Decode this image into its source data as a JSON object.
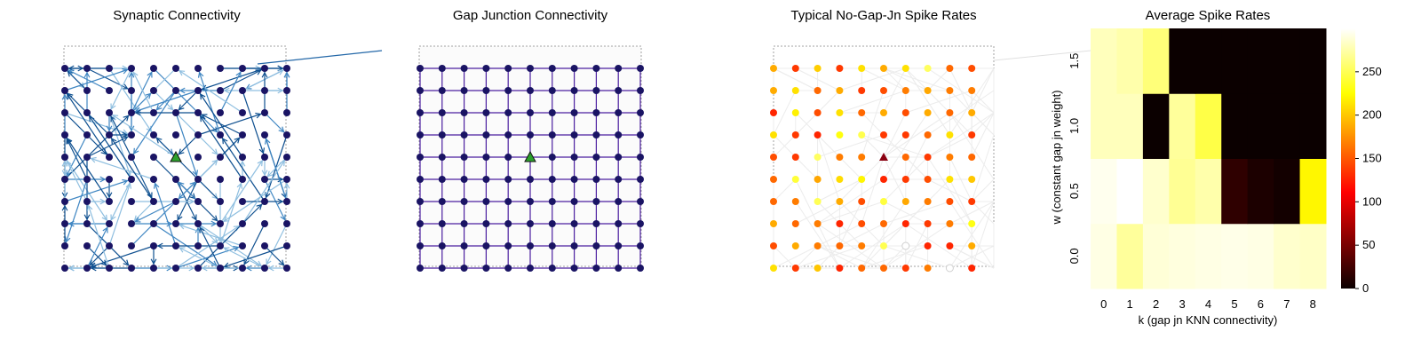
{
  "panels": {
    "synaptic": {
      "title": "Synaptic Connectivity"
    },
    "gap": {
      "title": "Gap Junction Connectivity"
    },
    "rates": {
      "title": "Typical No-Gap-Jn Spike Rates"
    }
  },
  "grid": {
    "n": 11
  },
  "colors": {
    "node": "#1a1464",
    "marker": "#2ca02c",
    "gap_edge": "#4b1fa0",
    "syn_light": "#8fbfe0",
    "syn_mid": "#3f86c2",
    "syn_dark": "#0e4f8f",
    "panel_bg": "#fbfbfb",
    "border": "#a0a0a0"
  },
  "chart_data": {
    "type": "heatmap",
    "title": "Average Spike Rates",
    "xlabel": "k (gap jn KNN connectivity)",
    "ylabel": "w (constant gap jn weight)",
    "x_ticks": [
      "0",
      "1",
      "2",
      "3",
      "4",
      "5",
      "6",
      "7",
      "8"
    ],
    "y_ticks": [
      "0.0",
      "0.5",
      "1.0",
      "1.5"
    ],
    "colorbar": {
      "ticks": [
        0,
        50,
        100,
        150,
        200,
        250
      ],
      "range": [
        0,
        300
      ],
      "colormap": "hot"
    },
    "values": [
      [
        292,
        270,
        288,
        290,
        292,
        293,
        292,
        285,
        283
      ],
      [
        295,
        300,
        285,
        268,
        275,
        20,
        12,
        8,
        220
      ],
      [
        280,
        280,
        3,
        270,
        245,
        3,
        3,
        3,
        3
      ],
      [
        280,
        275,
        260,
        3,
        3,
        3,
        3,
        3,
        3
      ]
    ]
  }
}
